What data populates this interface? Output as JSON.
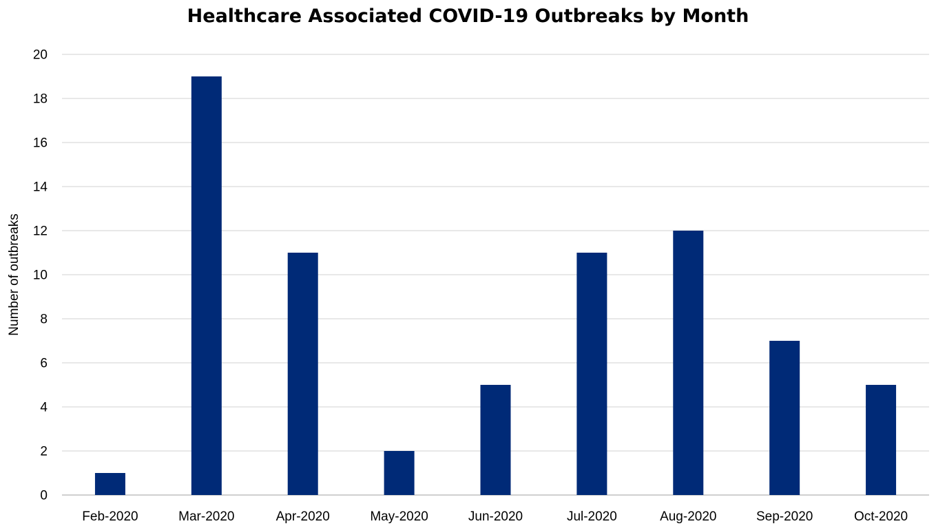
{
  "chart_data": {
    "type": "bar",
    "title": "Healthcare Associated COVID-19 Outbreaks by Month",
    "xlabel": "",
    "ylabel": "Number of outbreaks",
    "categories": [
      "Feb-2020",
      "Mar-2020",
      "Apr-2020",
      "May-2020",
      "Jun-2020",
      "Jul-2020",
      "Aug-2020",
      "Sep-2020",
      "Oct-2020"
    ],
    "series": [
      {
        "values": [
          1,
          19,
          11,
          2,
          5,
          11,
          12,
          7,
          5
        ]
      }
    ],
    "ylim": [
      0,
      20
    ],
    "yticks": [
      0,
      2,
      4,
      6,
      8,
      10,
      12,
      14,
      16,
      18,
      20
    ],
    "grid": true,
    "legend": "none",
    "colors": {
      "bar": "#002a77",
      "grid": "#d9d9d9",
      "axis": "#bfbfbf",
      "text": "#000000"
    }
  }
}
